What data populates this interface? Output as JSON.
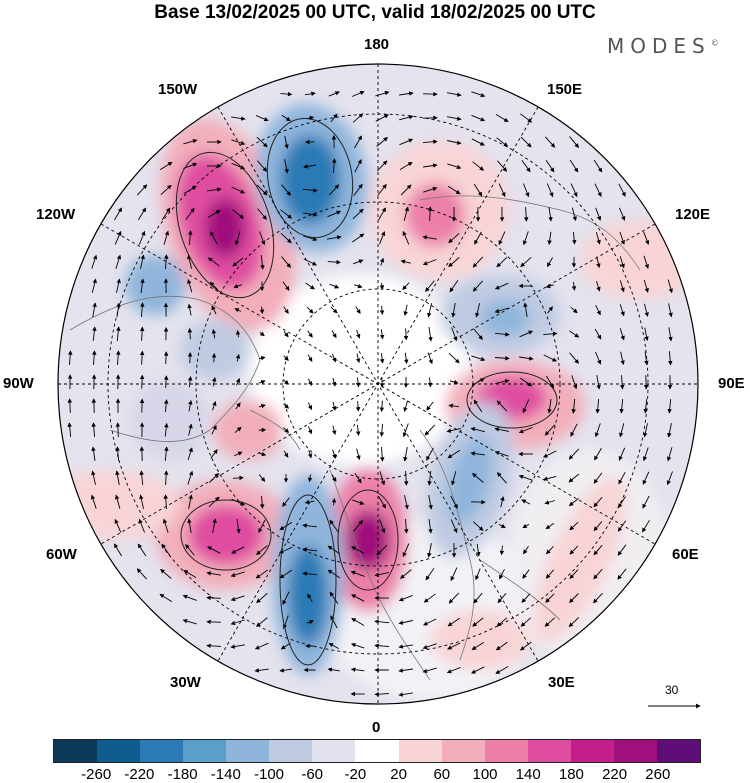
{
  "title": "Base 13/02/2025 00 UTC, valid 18/02/2025 00 UTC",
  "brand": "MODES",
  "brand_mark": "©",
  "longitude_labels": {
    "top": "180",
    "bottom": "0",
    "left": "90W",
    "right": "90E",
    "upper_left_150": "150W",
    "upper_right_150": "150E",
    "left_120": "120W",
    "right_120": "120E",
    "left_60": "60W",
    "right_60": "60E",
    "lower_left_30": "30W",
    "lower_right_30": "30E"
  },
  "vector_scale_label": "30",
  "colorbar": {
    "colors": [
      "#0b3a5b",
      "#0f5c8e",
      "#2b7ab5",
      "#5a9fcc",
      "#8fb5dc",
      "#bfcbe2",
      "#e2e0ee",
      "#ffffff",
      "#f8d4d6",
      "#f2aebb",
      "#ec80a8",
      "#df4da0",
      "#c41e8c",
      "#a0107c",
      "#5e0d79"
    ],
    "tick_labels": [
      "-260",
      "-220",
      "-180",
      "-140",
      "-100",
      "-60",
      "-20",
      "20",
      "60",
      "100",
      "140",
      "180",
      "220",
      "260"
    ]
  }
}
